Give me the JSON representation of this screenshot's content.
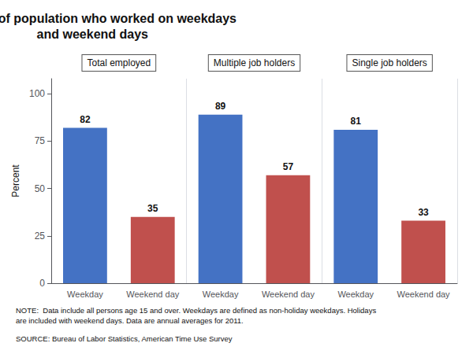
{
  "chart_data": {
    "type": "bar",
    "title": "Percent of population who worked on weekdays\nand weekend days",
    "ylabel": "Percent",
    "categories": [
      "Total employed",
      "Multiple job holders",
      "Single job holders"
    ],
    "series": [
      {
        "name": "Weekday",
        "color": "#4472C4",
        "values": [
          82,
          89,
          81
        ]
      },
      {
        "name": "Weekend day",
        "color": "#C0504D",
        "values": [
          35,
          57,
          33
        ]
      }
    ],
    "ylim": [
      0,
      108
    ],
    "yticks": [
      0,
      25,
      50,
      75,
      100
    ],
    "grid": false,
    "data_labels": true,
    "annotations": [
      "NOTE:  Data include all persons age 15 and over. Weekdays are defined as non-holiday weekdays. Holidays\nare included with weekend days. Data are annual averages for 2011.",
      "SOURCE: Bureau of Labor Statistics, American Time Use Survey"
    ]
  }
}
